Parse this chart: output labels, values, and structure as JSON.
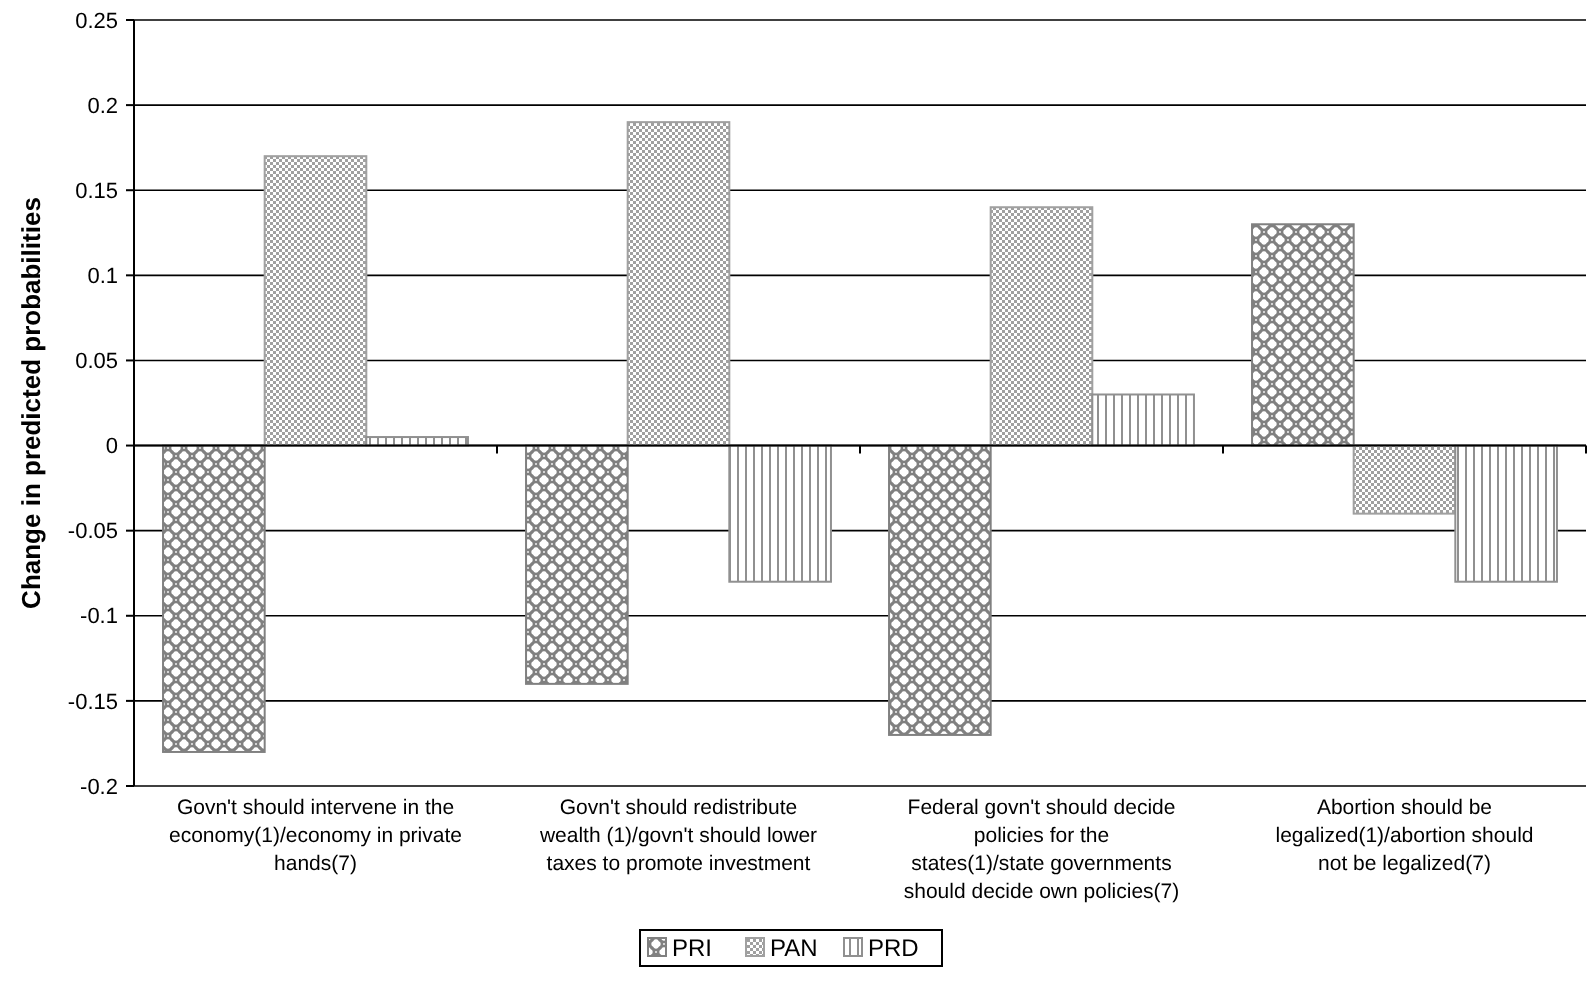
{
  "chart_data": {
    "type": "bar",
    "ylabel": "Change in predicted probabilities",
    "categories": [
      "Govn't should intervene in the economy(1)/economy in private hands(7)",
      "Govn't should redistribute wealth (1)/govn't should lower taxes to promote investment",
      "Federal govn't should decide policies for the states(1)/state governments should decide own policies(7)",
      "Abortion should be legalized(1)/abortion should not be legalized(7)"
    ],
    "series": [
      {
        "name": "PRI",
        "color": "#808080",
        "values": [
          -0.18,
          -0.14,
          -0.17,
          0.13
        ]
      },
      {
        "name": "PAN",
        "color": "#a0a0a0",
        "values": [
          0.17,
          0.19,
          0.14,
          -0.04
        ]
      },
      {
        "name": "PRD",
        "color": "#909090",
        "values": [
          0.005,
          -0.08,
          0.03,
          -0.08
        ]
      }
    ],
    "ylim": [
      -0.2,
      0.25
    ],
    "yticks": [
      -0.2,
      -0.15,
      -0.1,
      -0.05,
      0,
      0.05,
      0.1,
      0.15,
      0.2,
      0.25
    ],
    "grid": "y",
    "legend": "bottom"
  }
}
